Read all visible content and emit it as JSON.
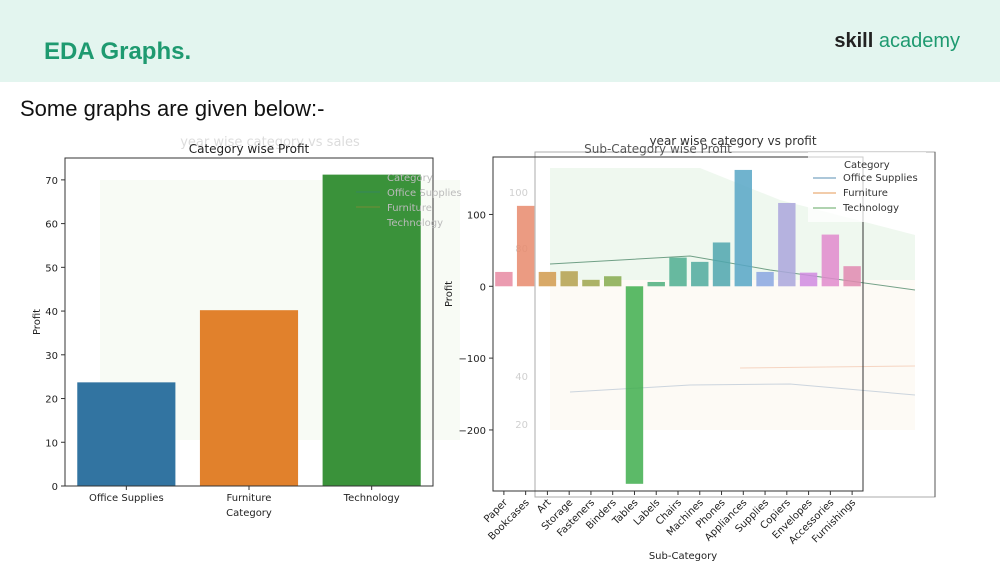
{
  "header": {
    "title": "EDA Graphs.",
    "brand_part1": "skill",
    "brand_part2": " academy"
  },
  "subtitle": "Some graphs are given below:-",
  "ghost_titles": {
    "left_overlay": "year wise category vs sales",
    "right_overlay": "year wise category vs profit"
  },
  "colors": {
    "header_bg": "#e3f5ef",
    "brand_green": "#1e9a70"
  },
  "chart_data": [
    {
      "type": "bar",
      "title": "Category wise Profit",
      "xlabel": "Category",
      "ylabel": "Profit",
      "categories": [
        "Office Supplies",
        "Furniture",
        "Technology"
      ],
      "values": [
        23.7,
        40.2,
        71.2
      ],
      "colors": [
        "#3274a1",
        "#e1812c",
        "#3a923a"
      ],
      "ylim": [
        0,
        75
      ],
      "yticks": [
        0,
        10,
        20,
        30,
        40,
        50,
        60,
        70
      ],
      "grid": false
    },
    {
      "type": "bar",
      "title": "Sub-Category wise Profit",
      "xlabel": "Sub-Category",
      "ylabel": "Profit",
      "categories": [
        "Paper",
        "Bookcases",
        "Art",
        "Storage",
        "Fasteners",
        "Binders",
        "Tables",
        "Labels",
        "Chairs",
        "Machines",
        "Phones",
        "Appliances",
        "Supplies",
        "Copiers",
        "Envelopes",
        "Accessories",
        "Furnishings"
      ],
      "values": [
        20,
        112,
        20,
        21,
        9,
        14,
        -275,
        6,
        40,
        34,
        61,
        162,
        20,
        116,
        19,
        72,
        28
      ],
      "colors": [
        "#e88aa2",
        "#e8896c",
        "#d19a4e",
        "#b4a04e",
        "#9ea44e",
        "#86aa4e",
        "#3fae4e",
        "#4fae7e",
        "#4fae90",
        "#4faa9e",
        "#4fa6ae",
        "#57a6c6",
        "#8aa6e0",
        "#aaa6dc",
        "#d08ae0",
        "#e08acc",
        "#e08ab0"
      ],
      "ylim": [
        -285,
        180
      ],
      "yticks": [
        -200,
        -100,
        0,
        100
      ],
      "grid": false,
      "overlay_legend": {
        "title": "Category",
        "entries": [
          {
            "label": "Office Supplies",
            "color": "#3274a1"
          },
          {
            "label": "Furniture",
            "color": "#e1812c"
          },
          {
            "label": "Technology",
            "color": "#3a923a"
          }
        ]
      }
    }
  ]
}
